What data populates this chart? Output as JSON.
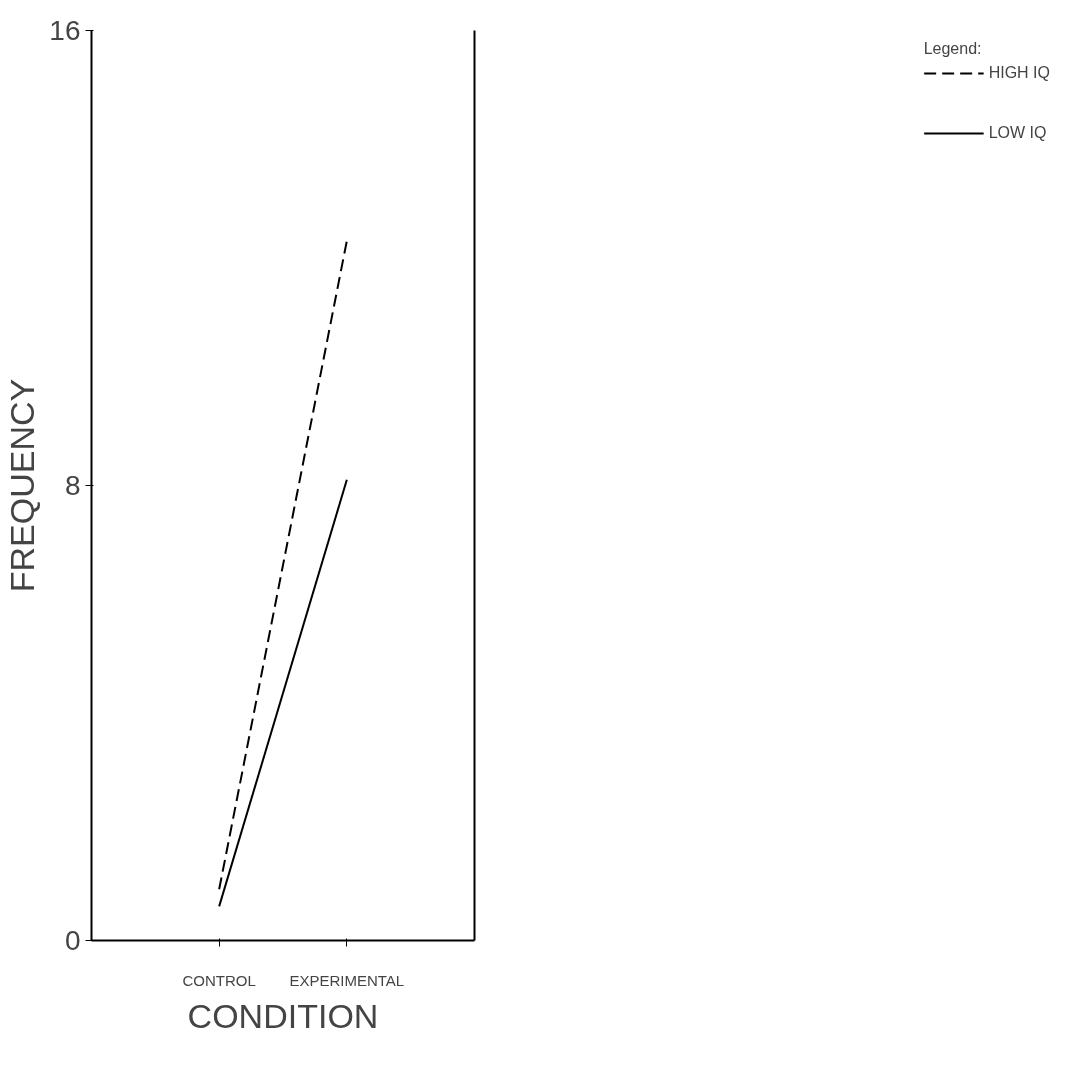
{
  "chart_data": {
    "type": "line",
    "xlabel": "CONDITION",
    "ylabel": "FREQUENCY",
    "legend_title": "Legend:",
    "categories": [
      "CONTROL",
      "EXPERIMENTAL"
    ],
    "series": [
      {
        "name": "HIGH IQ",
        "color": "#000000",
        "line_style": "dashed",
        "values": [
          0.9,
          12.3
        ]
      },
      {
        "name": "LOW IQ",
        "color": "#000000",
        "line_style": "solid",
        "values": [
          0.6,
          8.1
        ]
      }
    ],
    "ylim": [
      0,
      16
    ],
    "yticks": [
      0,
      8,
      16
    ],
    "grid": false,
    "legend": "right",
    "marker": "none"
  }
}
